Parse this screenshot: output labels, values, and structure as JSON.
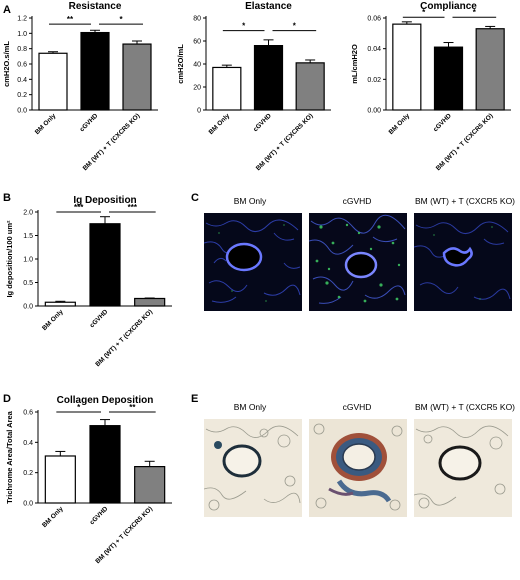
{
  "panel_labels": {
    "A": "A",
    "B": "B",
    "C": "C",
    "D": "D",
    "E": "E"
  },
  "categories": [
    "BM Only",
    "cGVHD",
    "BM (WT) + T (CXCR5 KO)"
  ],
  "bar_fills": [
    "#ffffff",
    "#000000",
    "#808080"
  ],
  "chart_data": [
    {
      "id": "resistance",
      "type": "bar",
      "title": "Resistance",
      "ylabel": "cmH2O.s/mL",
      "categories": [
        "BM Only",
        "cGVHD",
        "BM (WT) + T (CXCR5 KO)"
      ],
      "values": [
        0.74,
        1.01,
        0.86
      ],
      "errors": [
        0.02,
        0.03,
        0.04
      ],
      "ylim": [
        0,
        1.2
      ],
      "yticks": [
        0.0,
        0.2,
        0.4,
        0.6,
        0.8,
        1.0,
        1.2
      ],
      "ytick_labels": [
        "0.0",
        "0.2",
        "0.4",
        "0.6",
        "0.8",
        "1.0",
        "1.2"
      ],
      "significance": [
        {
          "from": 0,
          "to": 1,
          "label": "**",
          "y": 1.12
        },
        {
          "from": 1,
          "to": 2,
          "label": "*",
          "y": 1.12
        }
      ]
    },
    {
      "id": "elastance",
      "type": "bar",
      "title": "Elastance",
      "ylabel": "cmH2O/mL",
      "categories": [
        "BM Only",
        "cGVHD",
        "BM (WT) + T (CXCR5 KO)"
      ],
      "values": [
        37,
        56,
        41
      ],
      "errors": [
        2,
        5,
        2.5
      ],
      "ylim": [
        0,
        80
      ],
      "yticks": [
        0,
        20,
        40,
        60,
        80
      ],
      "ytick_labels": [
        "0",
        "20",
        "40",
        "60",
        "80"
      ],
      "significance": [
        {
          "from": 0,
          "to": 1,
          "label": "*",
          "y": 69
        },
        {
          "from": 1,
          "to": 2,
          "label": "*",
          "y": 69
        }
      ]
    },
    {
      "id": "compliance",
      "type": "bar",
      "title": "Compliance",
      "ylabel": "mL/cmH2O",
      "categories": [
        "BM Only",
        "cGVHD",
        "BM (WT) + T (CXCR5 KO)"
      ],
      "values": [
        0.056,
        0.041,
        0.053
      ],
      "errors": [
        0.0015,
        0.003,
        0.0015
      ],
      "ylim": [
        0,
        0.06
      ],
      "yticks": [
        0.0,
        0.02,
        0.04,
        0.06
      ],
      "ytick_labels": [
        "0.00",
        "0.02",
        "0.04",
        "0.06"
      ],
      "significance": [
        {
          "from": 0,
          "to": 1,
          "label": "*",
          "y": 0.0605
        },
        {
          "from": 1,
          "to": 2,
          "label": "*",
          "y": 0.0605
        }
      ]
    },
    {
      "id": "ig",
      "type": "bar",
      "title": "Ig Deposition",
      "ylabel": "Ig deposition/100 um²",
      "categories": [
        "BM Only",
        "cGVHD",
        "BM (WT) + T (CXCR5 KO)"
      ],
      "values": [
        0.08,
        1.75,
        0.16
      ],
      "errors": [
        0.02,
        0.15,
        0.01
      ],
      "ylim": [
        0,
        2.0
      ],
      "yticks": [
        0.0,
        0.5,
        1.0,
        1.5,
        2.0
      ],
      "ytick_labels": [
        "0.0",
        "0.5",
        "1.0",
        "1.5",
        "2.0"
      ],
      "significance": [
        {
          "from": 0,
          "to": 1,
          "label": "***",
          "y": 2.0
        },
        {
          "from": 1,
          "to": 2,
          "label": "***",
          "y": 2.0
        }
      ]
    },
    {
      "id": "collagen",
      "type": "bar",
      "title": "Collagen Deposition",
      "ylabel": "Trichrome Area/Total Area",
      "categories": [
        "BM Only",
        "cGVHD",
        "BM (WT) + T (CXCR5 KO)"
      ],
      "values": [
        0.31,
        0.51,
        0.24
      ],
      "errors": [
        0.03,
        0.04,
        0.035
      ],
      "ylim": [
        0,
        0.6
      ],
      "yticks": [
        0.0,
        0.2,
        0.4,
        0.6
      ],
      "ytick_labels": [
        "0.0",
        "0.2",
        "0.4",
        "0.6"
      ],
      "significance": [
        {
          "from": 0,
          "to": 1,
          "label": "*",
          "y": 0.6
        },
        {
          "from": 1,
          "to": 2,
          "label": "**",
          "y": 0.6
        }
      ]
    }
  ],
  "images_c": {
    "labels": [
      "BM Only",
      "cGVHD",
      "BM (WT) + T (CXCR5 KO)"
    ]
  },
  "images_e": {
    "labels": [
      "BM Only",
      "cGVHD",
      "BM (WT) + T (CXCR5 KO)"
    ]
  }
}
